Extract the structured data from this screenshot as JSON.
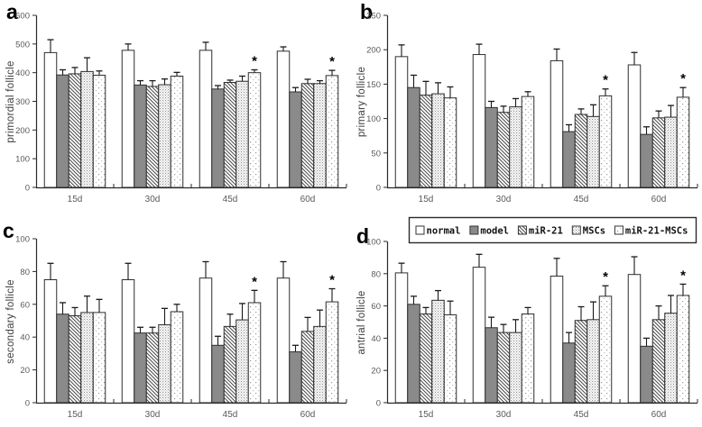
{
  "figure": {
    "background": "#ffffff",
    "colors": {
      "axis": "#2a2a2a",
      "tick_label": "#5a5a5a",
      "bar_outline": "#2f2f2f",
      "model_fill": "#8a8a8a",
      "error_bar": "#1a1a1a",
      "legend_border": "#2b2b2b"
    }
  },
  "legend": {
    "position": "top of panel d",
    "items": [
      {
        "label": "normal",
        "pattern": "white"
      },
      {
        "label": "model",
        "pattern": "solid-gray"
      },
      {
        "label": "miR-21",
        "pattern": "diagonal-hatch"
      },
      {
        "label": "MSCs",
        "pattern": "dot-grid"
      },
      {
        "label": "miR-21-MSCs",
        "pattern": "sparse-dots"
      }
    ]
  },
  "chart_data": [
    {
      "type": "bar",
      "panel": "a",
      "ylabel": "primordial follicle",
      "ylim": [
        0,
        600
      ],
      "ytick_step": 100,
      "grid": false,
      "legend_visible": false,
      "layout": {
        "plot_top": 17,
        "plot_bottom": 208
      },
      "categories": [
        "15d",
        "30d",
        "45d",
        "60d"
      ],
      "series": [
        {
          "name": "normal",
          "values": [
            470,
            478,
            478,
            475
          ],
          "errors": [
            45,
            22,
            28,
            15
          ]
        },
        {
          "name": "model",
          "values": [
            392,
            357,
            343,
            333
          ],
          "errors": [
            18,
            15,
            12,
            15
          ]
        },
        {
          "name": "miR-21",
          "values": [
            396,
            352,
            366,
            362
          ],
          "errors": [
            22,
            20,
            8,
            15
          ]
        },
        {
          "name": "MSCs",
          "values": [
            404,
            358,
            370,
            362
          ],
          "errors": [
            48,
            20,
            18,
            10
          ]
        },
        {
          "name": "miR-21-MSCs",
          "values": [
            391,
            388,
            400,
            390
          ],
          "errors": [
            15,
            13,
            10,
            18
          ]
        }
      ],
      "annotations": [
        {
          "category": "45d",
          "series": "miR-21-MSCs",
          "text": "*"
        },
        {
          "category": "60d",
          "series": "miR-21-MSCs",
          "text": "*"
        }
      ]
    },
    {
      "type": "bar",
      "panel": "b",
      "ylabel": "primary follicle",
      "ylim": [
        0,
        250
      ],
      "ytick_step": 50,
      "grid": false,
      "legend_visible": false,
      "layout": {
        "plot_top": 17,
        "plot_bottom": 208
      },
      "categories": [
        "15d",
        "30d",
        "45d",
        "60d"
      ],
      "series": [
        {
          "name": "normal",
          "values": [
            190,
            193,
            184,
            178
          ],
          "errors": [
            17,
            15,
            17,
            18
          ]
        },
        {
          "name": "model",
          "values": [
            145,
            116,
            81,
            77
          ],
          "errors": [
            18,
            9,
            10,
            11
          ]
        },
        {
          "name": "miR-21",
          "values": [
            134,
            109,
            106,
            101
          ],
          "errors": [
            20,
            9,
            8,
            10
          ]
        },
        {
          "name": "MSCs",
          "values": [
            136,
            117,
            103,
            102
          ],
          "errors": [
            16,
            12,
            17,
            17
          ]
        },
        {
          "name": "miR-21-MSCs",
          "values": [
            130,
            132,
            133,
            131
          ],
          "errors": [
            16,
            7,
            10,
            14
          ]
        }
      ],
      "annotations": [
        {
          "category": "45d",
          "series": "miR-21-MSCs",
          "text": "*"
        },
        {
          "category": "60d",
          "series": "miR-21-MSCs",
          "text": "*"
        }
      ]
    },
    {
      "type": "bar",
      "panel": "c",
      "ylabel": "secondary follicle",
      "ylim": [
        0,
        100
      ],
      "ytick_step": 20,
      "grid": false,
      "legend_visible": false,
      "layout": {
        "plot_top": 28,
        "plot_bottom": 210
      },
      "categories": [
        "15d",
        "30d",
        "45d",
        "60d"
      ],
      "series": [
        {
          "name": "normal",
          "values": [
            75,
            75,
            76,
            76
          ],
          "errors": [
            10,
            10,
            10,
            10
          ]
        },
        {
          "name": "model",
          "values": [
            54,
            42.5,
            35,
            31
          ],
          "errors": [
            7,
            3.5,
            5.5,
            4
          ]
        },
        {
          "name": "miR-21",
          "values": [
            53,
            42.5,
            46.5,
            43.5
          ],
          "errors": [
            5,
            3.5,
            7.5,
            8.5
          ]
        },
        {
          "name": "MSCs",
          "values": [
            55,
            47.5,
            50.5,
            46.5
          ],
          "errors": [
            10,
            10,
            10,
            10
          ]
        },
        {
          "name": "miR-21-MSCs",
          "values": [
            55,
            55.5,
            61,
            61.5
          ],
          "errors": [
            8,
            4.5,
            7.5,
            8
          ]
        }
      ],
      "annotations": [
        {
          "category": "45d",
          "series": "miR-21-MSCs",
          "text": "*"
        },
        {
          "category": "60d",
          "series": "miR-21-MSCs",
          "text": "*"
        }
      ]
    },
    {
      "type": "bar",
      "panel": "d",
      "ylabel": "antrial follicle",
      "ylim": [
        0,
        100
      ],
      "ytick_step": 20,
      "grid": false,
      "legend_visible": true,
      "layout": {
        "plot_top": 31,
        "plot_bottom": 210
      },
      "categories": [
        "15d",
        "30d",
        "45d",
        "60d"
      ],
      "series": [
        {
          "name": "normal",
          "values": [
            80.5,
            84,
            78.5,
            79.5
          ],
          "errors": [
            6,
            8,
            11,
            11
          ]
        },
        {
          "name": "model",
          "values": [
            61,
            46.5,
            37,
            35
          ],
          "errors": [
            5,
            6.5,
            6.5,
            5
          ]
        },
        {
          "name": "miR-21",
          "values": [
            55,
            43.5,
            51,
            51.5
          ],
          "errors": [
            4,
            5,
            8.5,
            8.5
          ]
        },
        {
          "name": "MSCs",
          "values": [
            63.5,
            43.5,
            51.5,
            55.5
          ],
          "errors": [
            6,
            8,
            11,
            11
          ]
        },
        {
          "name": "miR-21-MSCs",
          "values": [
            54.5,
            55,
            66,
            66.5
          ],
          "errors": [
            8.5,
            4,
            6.5,
            7
          ]
        }
      ],
      "annotations": [
        {
          "category": "45d",
          "series": "miR-21-MSCs",
          "text": "*"
        },
        {
          "category": "60d",
          "series": "miR-21-MSCs",
          "text": "*"
        }
      ]
    }
  ]
}
